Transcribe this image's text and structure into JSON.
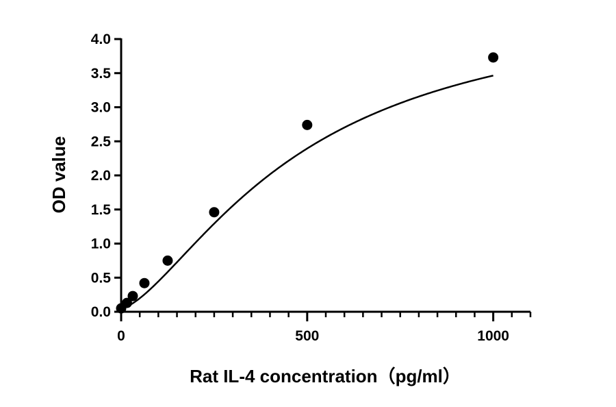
{
  "chart_data": {
    "type": "scatter",
    "title": "",
    "xlabel": "Rat IL-4 concentration（pg/ml）",
    "ylabel": "OD value",
    "xlim": [
      0,
      1100
    ],
    "ylim": [
      0,
      4.0
    ],
    "x_ticks": [
      "0",
      "500",
      "1000"
    ],
    "y_ticks": [
      "0.0",
      "0.5",
      "1.0",
      "1.5",
      "2.0",
      "2.5",
      "3.0",
      "3.5",
      "4.0"
    ],
    "x_minor_step": 50,
    "grid": false,
    "legend": "none",
    "fit": "four-parameter logistic curve through the points",
    "series": [
      {
        "x": [
          0,
          15.6,
          31.25,
          62.5,
          125,
          250,
          500,
          1000
        ],
        "y": [
          0.05,
          0.13,
          0.23,
          0.42,
          0.75,
          1.46,
          2.74,
          3.73
        ]
      }
    ],
    "colors": {
      "points": "#000000",
      "curve": "#000000",
      "axes": "#000000"
    }
  }
}
